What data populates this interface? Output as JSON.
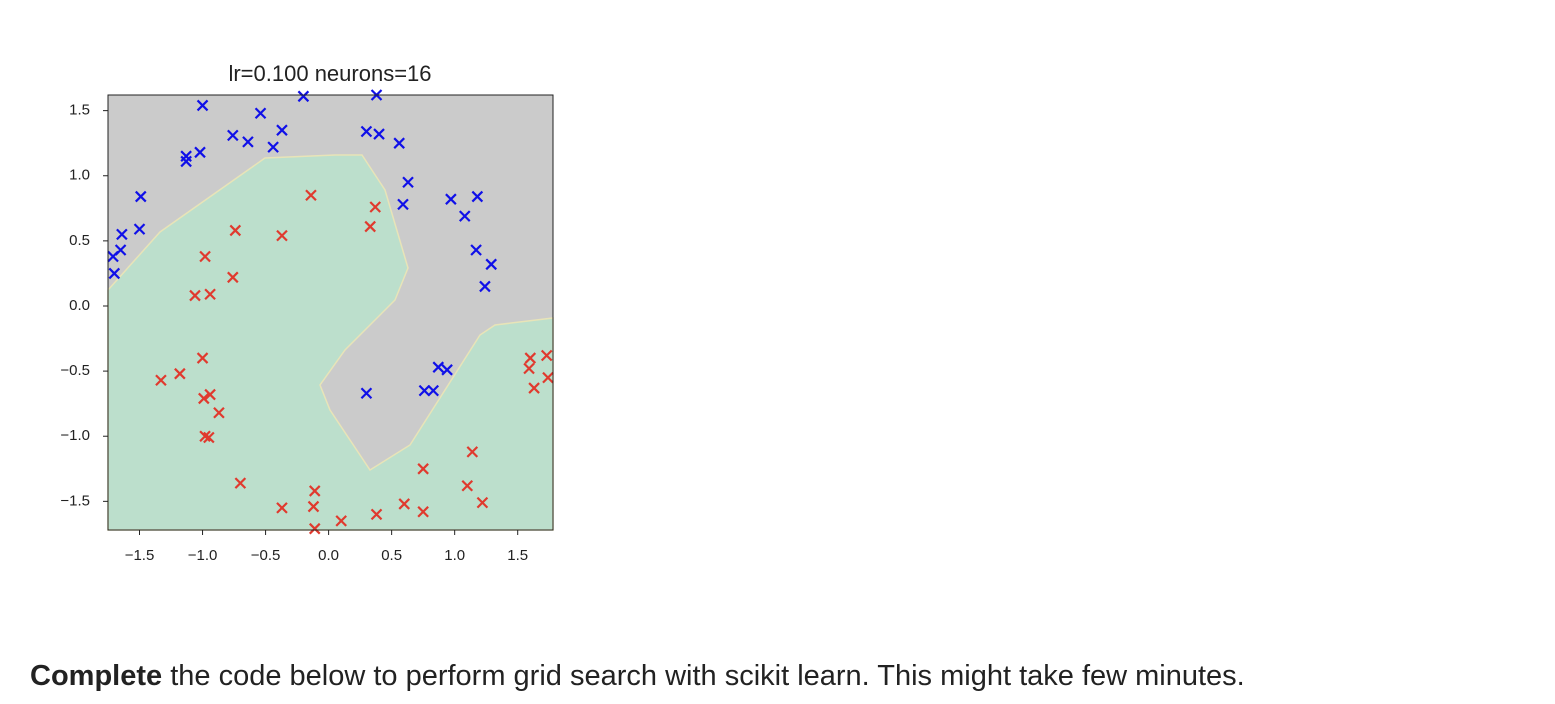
{
  "chart_data": {
    "type": "scatter",
    "title": "lr=0.100 neurons=16",
    "xlim": [
      -1.75,
      1.78
    ],
    "ylim": [
      -1.72,
      1.62
    ],
    "xticks": [
      {
        "value": -1.5,
        "label": "−1.5"
      },
      {
        "value": -1.0,
        "label": "−1.0"
      },
      {
        "value": -0.5,
        "label": "−0.5"
      },
      {
        "value": 0.0,
        "label": "0.0"
      },
      {
        "value": 0.5,
        "label": "0.5"
      },
      {
        "value": 1.0,
        "label": "1.0"
      },
      1.5
    ],
    "yticks": [
      {
        "value": -1.5,
        "label": "−1.5"
      },
      {
        "value": -1.0,
        "label": "−1.0"
      },
      {
        "value": -0.5,
        "label": "−0.5"
      },
      {
        "value": 0.0,
        "label": "0.0"
      },
      {
        "value": 0.5,
        "label": "0.5"
      },
      {
        "value": 1.0,
        "label": "1.0"
      },
      1.5
    ],
    "series": [
      {
        "color": "#1010e8",
        "x": [
          -1.0,
          -0.54,
          -0.2,
          0.38,
          -0.76,
          -0.64,
          -0.37,
          -0.44,
          0.3,
          0.4,
          0.56,
          -1.13,
          -1.13,
          -1.02,
          -1.49,
          0.63,
          0.59,
          0.97,
          1.18,
          1.08,
          -1.5,
          -1.64,
          -1.65,
          -1.71,
          -1.7,
          1.17,
          1.29,
          1.24,
          0.87,
          0.94,
          0.3,
          0.76,
          0.83
        ],
        "values": [
          1.54,
          1.48,
          1.61,
          1.62,
          1.31,
          1.26,
          1.35,
          1.22,
          1.34,
          1.32,
          1.25,
          1.15,
          1.11,
          1.18,
          0.84,
          0.95,
          0.78,
          0.82,
          0.84,
          0.69,
          0.59,
          0.55,
          0.43,
          0.38,
          0.25,
          0.43,
          0.32,
          0.15,
          -0.47,
          -0.49,
          -0.67,
          -0.65,
          -0.65
        ]
      },
      {
        "color": "#e03a2e",
        "x": [
          -0.14,
          0.37,
          0.33,
          -0.74,
          -0.37,
          -0.98,
          -0.76,
          -1.06,
          -0.94,
          -1.0,
          -1.18,
          -1.33,
          -0.99,
          -0.94,
          -0.87,
          -0.98,
          -0.95,
          -0.7,
          -0.37,
          -0.11,
          -0.12,
          -0.11,
          0.1,
          0.38,
          0.6,
          0.75,
          0.75,
          1.14,
          1.1,
          1.22,
          1.6,
          1.59,
          1.73,
          1.63,
          1.74
        ],
        "values": [
          0.85,
          0.76,
          0.61,
          0.58,
          0.54,
          0.38,
          0.22,
          0.08,
          0.09,
          -0.4,
          -0.52,
          -0.57,
          -0.71,
          -0.68,
          -0.82,
          -1.0,
          -1.01,
          -1.36,
          -1.55,
          -1.42,
          -1.54,
          -1.71,
          -1.65,
          -1.6,
          -1.52,
          -1.58,
          -1.25,
          -1.12,
          -1.38,
          -1.51,
          -0.4,
          -0.48,
          -0.38,
          -0.63,
          -0.55
        ]
      }
    ]
  },
  "instruction": {
    "bold": "Complete",
    "text": " the code below to perform grid search with scikit learn. This might take few minutes."
  }
}
